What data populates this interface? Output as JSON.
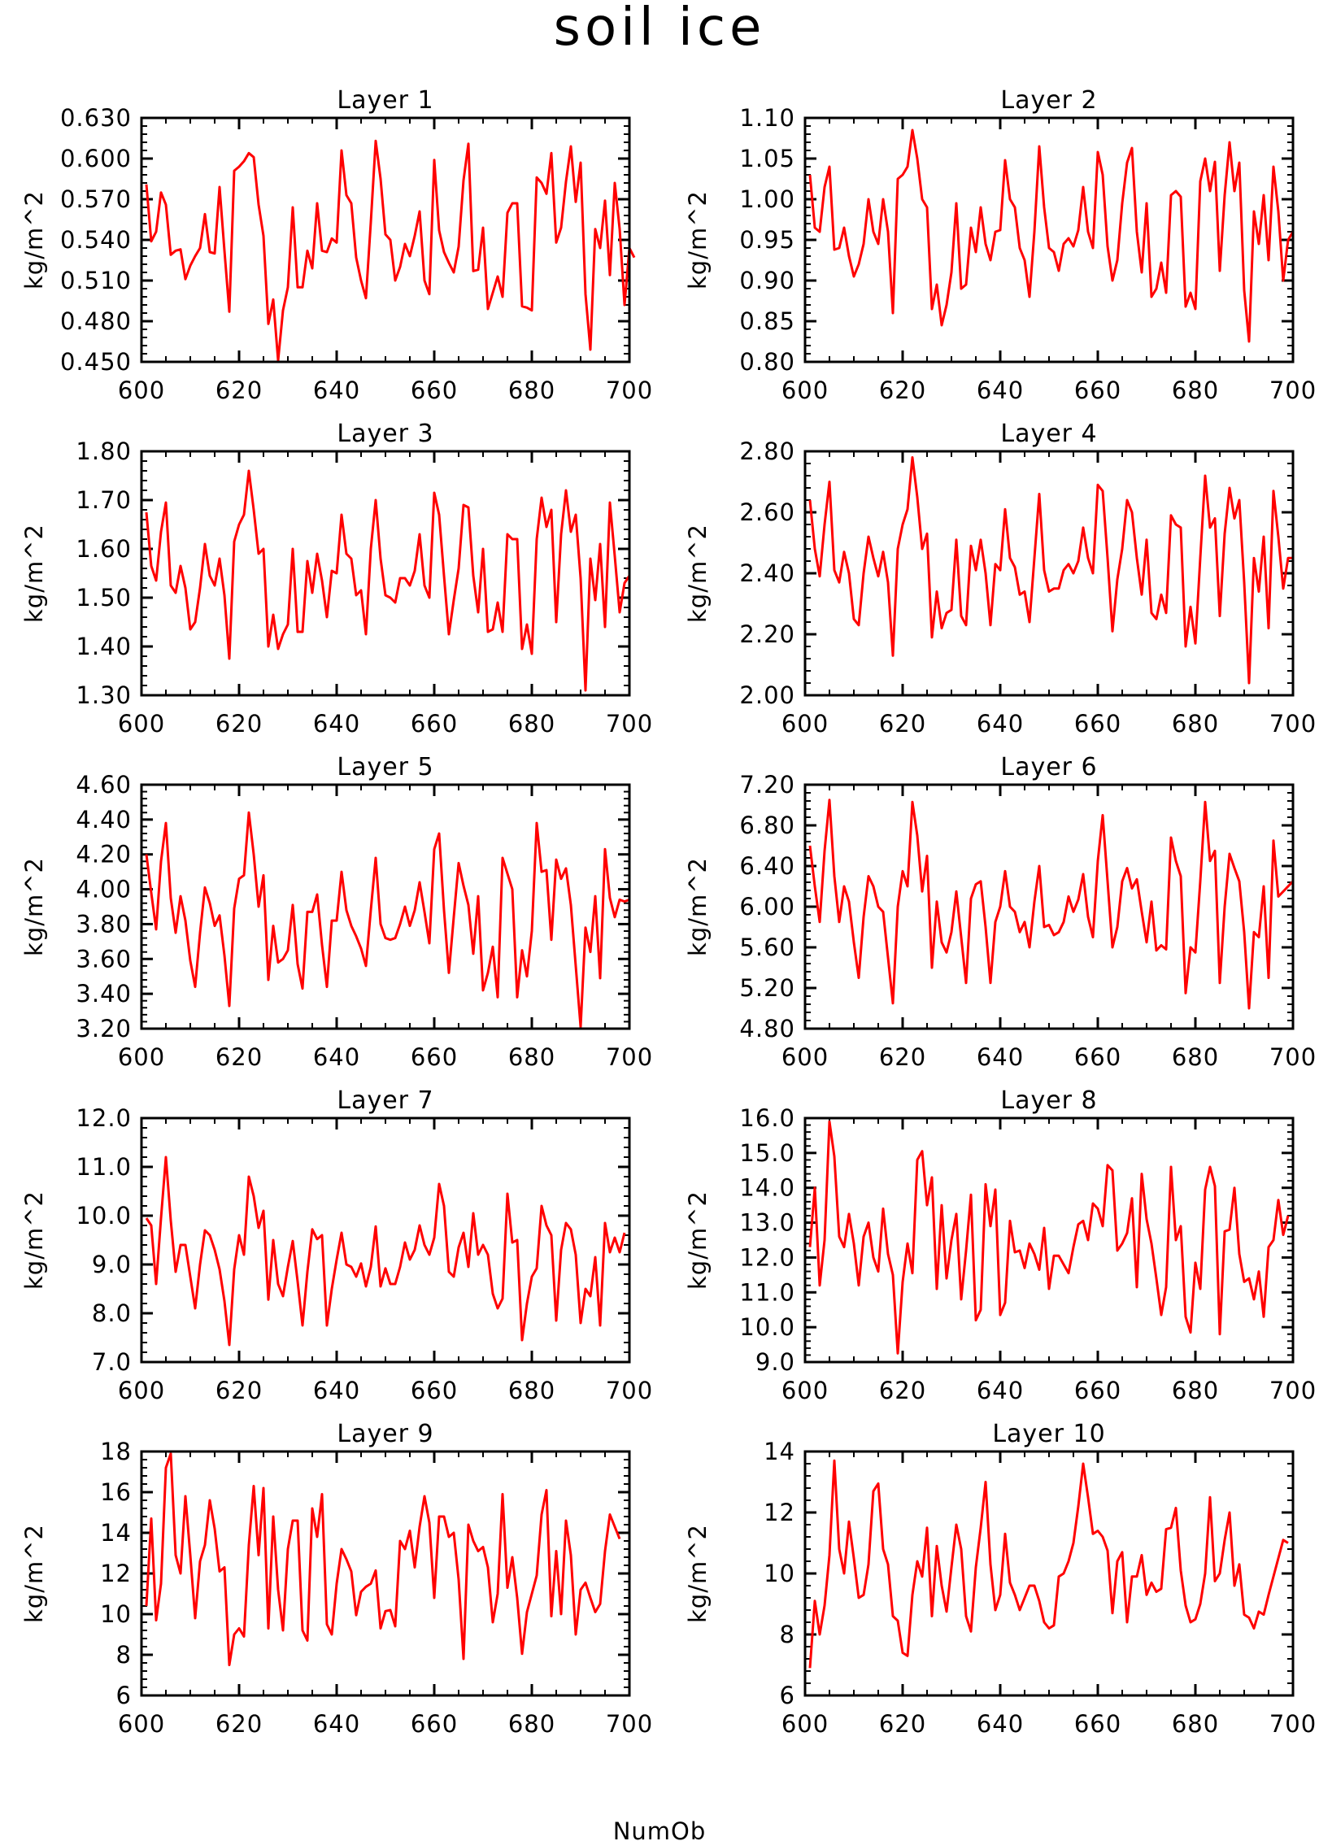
{
  "figure": {
    "title": "soil ice",
    "xlabel": "NumOb"
  },
  "colors": {
    "line": "#ff0000",
    "axes": "#000000",
    "background": "#ffffff"
  },
  "chart_data": [
    {
      "type": "line",
      "title": "Layer 1",
      "ylabel": "kg/m^2",
      "xlim": [
        600,
        700
      ],
      "ylim": [
        0.45,
        0.63
      ],
      "xticks": [
        "600",
        "620",
        "640",
        "660",
        "680",
        "700"
      ],
      "yticks": [
        "0.450",
        "0.480",
        "0.510",
        "0.540",
        "0.570",
        "0.600",
        "0.630"
      ],
      "x_start": 601,
      "values": [
        0.581,
        0.539,
        0.546,
        0.575,
        0.566,
        0.529,
        0.532,
        0.533,
        0.511,
        0.521,
        0.528,
        0.534,
        0.559,
        0.531,
        0.53,
        0.579,
        0.532,
        0.487,
        0.591,
        0.594,
        0.598,
        0.604,
        0.601,
        0.566,
        0.543,
        0.478,
        0.496,
        0.451,
        0.488,
        0.505,
        0.564,
        0.505,
        0.505,
        0.532,
        0.519,
        0.567,
        0.532,
        0.531,
        0.541,
        0.538,
        0.606,
        0.573,
        0.567,
        0.527,
        0.51,
        0.497,
        0.553,
        0.613,
        0.585,
        0.544,
        0.54,
        0.51,
        0.52,
        0.537,
        0.528,
        0.543,
        0.561,
        0.51,
        0.5,
        0.599,
        0.547,
        0.531,
        0.523,
        0.516,
        0.535,
        0.584,
        0.611,
        0.517,
        0.518,
        0.549,
        0.489,
        0.501,
        0.513,
        0.498,
        0.56,
        0.567,
        0.567,
        0.491,
        0.49,
        0.488,
        0.586,
        0.582,
        0.574,
        0.604,
        0.538,
        0.549,
        0.583,
        0.609,
        0.568,
        0.597,
        0.5,
        0.459,
        0.548,
        0.534,
        0.569,
        0.514,
        0.582,
        0.548,
        0.492,
        0.534,
        0.527
      ]
    },
    {
      "type": "line",
      "title": "Layer 2",
      "ylabel": "kg/m^2",
      "xlim": [
        600,
        700
      ],
      "ylim": [
        0.8,
        1.1
      ],
      "xticks": [
        "600",
        "620",
        "640",
        "660",
        "680",
        "700"
      ],
      "yticks": [
        "0.80",
        "0.85",
        "0.90",
        "0.95",
        "1.00",
        "1.05",
        "1.10"
      ],
      "x_start": 601,
      "values": [
        1.03,
        0.965,
        0.96,
        1.015,
        1.04,
        0.938,
        0.94,
        0.965,
        0.93,
        0.905,
        0.92,
        0.945,
        1.0,
        0.96,
        0.945,
        1.0,
        0.96,
        0.86,
        1.025,
        1.03,
        1.04,
        1.085,
        1.05,
        1.0,
        0.99,
        0.865,
        0.895,
        0.845,
        0.87,
        0.91,
        0.995,
        0.89,
        0.895,
        0.965,
        0.935,
        0.99,
        0.945,
        0.925,
        0.96,
        0.962,
        1.048,
        1.0,
        0.99,
        0.94,
        0.925,
        0.88,
        0.96,
        1.065,
        0.99,
        0.94,
        0.935,
        0.912,
        0.945,
        0.952,
        0.942,
        0.962,
        1.015,
        0.96,
        0.94,
        1.058,
        1.03,
        0.942,
        0.9,
        0.925,
        0.995,
        1.045,
        1.063,
        0.96,
        0.91,
        0.995,
        0.88,
        0.89,
        0.922,
        0.885,
        1.005,
        1.01,
        1.003,
        0.868,
        0.885,
        0.865,
        1.022,
        1.05,
        1.01,
        1.046,
        0.912,
        1.005,
        1.07,
        1.01,
        1.045,
        0.888,
        0.825,
        0.985,
        0.945,
        1.005,
        0.925,
        1.04,
        0.985,
        0.9,
        0.95,
        0.96
      ]
    },
    {
      "type": "line",
      "title": "Layer 3",
      "ylabel": "kg/m^2",
      "xlim": [
        600,
        700
      ],
      "ylim": [
        1.3,
        1.8
      ],
      "xticks": [
        "600",
        "620",
        "640",
        "660",
        "680",
        "700"
      ],
      "yticks": [
        "1.30",
        "1.40",
        "1.50",
        "1.60",
        "1.70",
        "1.80"
      ],
      "x_start": 601,
      "values": [
        1.675,
        1.565,
        1.535,
        1.635,
        1.695,
        1.525,
        1.51,
        1.565,
        1.52,
        1.435,
        1.45,
        1.52,
        1.61,
        1.545,
        1.525,
        1.58,
        1.505,
        1.375,
        1.615,
        1.65,
        1.67,
        1.76,
        1.68,
        1.59,
        1.6,
        1.4,
        1.465,
        1.395,
        1.425,
        1.445,
        1.6,
        1.43,
        1.43,
        1.575,
        1.51,
        1.59,
        1.535,
        1.46,
        1.555,
        1.55,
        1.67,
        1.59,
        1.58,
        1.505,
        1.515,
        1.425,
        1.6,
        1.7,
        1.58,
        1.505,
        1.5,
        1.49,
        1.54,
        1.54,
        1.525,
        1.555,
        1.63,
        1.525,
        1.5,
        1.715,
        1.67,
        1.545,
        1.425,
        1.495,
        1.56,
        1.69,
        1.685,
        1.545,
        1.47,
        1.6,
        1.43,
        1.435,
        1.49,
        1.43,
        1.63,
        1.62,
        1.62,
        1.395,
        1.445,
        1.385,
        1.62,
        1.705,
        1.645,
        1.68,
        1.45,
        1.63,
        1.72,
        1.635,
        1.67,
        1.54,
        1.31,
        1.58,
        1.495,
        1.61,
        1.44,
        1.695,
        1.585,
        1.47,
        1.53,
        1.545
      ]
    },
    {
      "type": "line",
      "title": "Layer 4",
      "ylabel": "kg/m^2",
      "xlim": [
        600,
        700
      ],
      "ylim": [
        2.0,
        2.8
      ],
      "xticks": [
        "600",
        "620",
        "640",
        "660",
        "680",
        "700"
      ],
      "yticks": [
        "2.00",
        "2.20",
        "2.40",
        "2.60",
        "2.80"
      ],
      "x_start": 601,
      "values": [
        2.64,
        2.48,
        2.39,
        2.56,
        2.7,
        2.41,
        2.37,
        2.47,
        2.4,
        2.25,
        2.23,
        2.4,
        2.52,
        2.45,
        2.39,
        2.47,
        2.37,
        2.13,
        2.48,
        2.56,
        2.61,
        2.78,
        2.65,
        2.48,
        2.53,
        2.19,
        2.34,
        2.22,
        2.27,
        2.28,
        2.51,
        2.26,
        2.23,
        2.49,
        2.41,
        2.51,
        2.4,
        2.23,
        2.43,
        2.41,
        2.61,
        2.45,
        2.42,
        2.33,
        2.34,
        2.24,
        2.45,
        2.66,
        2.41,
        2.34,
        2.35,
        2.35,
        2.41,
        2.43,
        2.4,
        2.44,
        2.55,
        2.45,
        2.4,
        2.69,
        2.67,
        2.45,
        2.21,
        2.38,
        2.48,
        2.64,
        2.6,
        2.45,
        2.33,
        2.51,
        2.27,
        2.25,
        2.33,
        2.27,
        2.59,
        2.56,
        2.55,
        2.16,
        2.29,
        2.17,
        2.45,
        2.72,
        2.55,
        2.58,
        2.26,
        2.53,
        2.68,
        2.58,
        2.64,
        2.37,
        2.04,
        2.45,
        2.34,
        2.52,
        2.22,
        2.67,
        2.52,
        2.35,
        2.45,
        2.45
      ]
    },
    {
      "type": "line",
      "title": "Layer 5",
      "ylabel": "kg/m^2",
      "xlim": [
        600,
        700
      ],
      "ylim": [
        3.2,
        4.6
      ],
      "xticks": [
        "600",
        "620",
        "640",
        "660",
        "680",
        "700"
      ],
      "yticks": [
        "3.20",
        "3.40",
        "3.60",
        "3.80",
        "4.00",
        "4.20",
        "4.40",
        "4.60"
      ],
      "x_start": 601,
      "values": [
        4.2,
        3.98,
        3.77,
        4.16,
        4.38,
        3.95,
        3.75,
        3.96,
        3.82,
        3.59,
        3.44,
        3.75,
        4.01,
        3.92,
        3.79,
        3.85,
        3.62,
        3.33,
        3.89,
        4.06,
        4.08,
        4.44,
        4.2,
        3.9,
        4.08,
        3.48,
        3.79,
        3.58,
        3.6,
        3.65,
        3.91,
        3.57,
        3.43,
        3.87,
        3.87,
        3.97,
        3.68,
        3.44,
        3.82,
        3.82,
        4.1,
        3.88,
        3.79,
        3.73,
        3.66,
        3.56,
        3.88,
        4.18,
        3.8,
        3.72,
        3.71,
        3.72,
        3.8,
        3.9,
        3.79,
        3.88,
        4.04,
        3.87,
        3.69,
        4.23,
        4.32,
        3.88,
        3.52,
        3.84,
        4.15,
        4.02,
        3.91,
        3.63,
        3.96,
        3.42,
        3.52,
        3.67,
        3.38,
        4.18,
        4.09,
        4.0,
        3.38,
        3.65,
        3.5,
        3.76,
        4.38,
        4.1,
        4.11,
        3.71,
        4.17,
        4.06,
        4.12,
        3.91,
        3.56,
        3.21,
        3.78,
        3.64,
        3.96,
        3.49,
        4.23,
        3.95,
        3.84,
        3.94,
        3.93,
        3.94
      ]
    },
    {
      "type": "line",
      "title": "Layer 6",
      "ylabel": "kg/m^2",
      "xlim": [
        600,
        700
      ],
      "ylim": [
        4.8,
        7.2
      ],
      "xticks": [
        "600",
        "620",
        "640",
        "660",
        "680",
        "700"
      ],
      "yticks": [
        "4.80",
        "5.20",
        "5.60",
        "6.00",
        "6.40",
        "6.80",
        "7.20"
      ],
      "x_start": 601,
      "values": [
        6.6,
        6.2,
        5.85,
        6.55,
        7.05,
        6.3,
        5.85,
        6.2,
        6.05,
        5.65,
        5.3,
        5.9,
        6.3,
        6.2,
        6.0,
        5.95,
        5.5,
        5.05,
        6.0,
        6.35,
        6.2,
        7.03,
        6.7,
        6.15,
        6.5,
        5.4,
        6.05,
        5.65,
        5.55,
        5.75,
        6.15,
        5.7,
        5.25,
        6.08,
        6.22,
        6.25,
        5.8,
        5.25,
        5.85,
        6.0,
        6.35,
        6.0,
        5.95,
        5.75,
        5.85,
        5.6,
        6.05,
        6.4,
        5.8,
        5.82,
        5.72,
        5.75,
        5.85,
        6.1,
        5.95,
        6.07,
        6.32,
        5.9,
        5.7,
        6.45,
        6.9,
        6.25,
        5.6,
        5.8,
        6.25,
        6.38,
        6.18,
        6.27,
        5.95,
        5.65,
        6.05,
        5.57,
        5.62,
        5.58,
        6.68,
        6.45,
        6.3,
        5.15,
        5.6,
        5.55,
        6.25,
        7.03,
        6.45,
        6.55,
        5.25,
        6.0,
        6.52,
        6.38,
        6.25,
        5.75,
        5.0,
        5.75,
        5.7,
        6.2,
        5.3,
        6.65,
        6.1,
        6.15,
        6.2,
        6.25
      ]
    },
    {
      "type": "line",
      "title": "Layer 7",
      "ylabel": "kg/m^2",
      "xlim": [
        600,
        700
      ],
      "ylim": [
        7.0,
        12.0
      ],
      "xticks": [
        "600",
        "620",
        "640",
        "660",
        "680",
        "700"
      ],
      "yticks": [
        "7.0",
        "8.0",
        "9.0",
        "10.0",
        "11.0",
        "12.0"
      ],
      "x_start": 601,
      "values": [
        9.95,
        9.8,
        8.6,
        9.95,
        11.2,
        9.9,
        8.85,
        9.4,
        9.4,
        8.75,
        8.1,
        9.0,
        9.7,
        9.6,
        9.3,
        8.9,
        8.25,
        7.35,
        8.9,
        9.6,
        9.2,
        10.8,
        10.4,
        9.75,
        10.1,
        8.28,
        9.5,
        8.6,
        8.35,
        8.95,
        9.48,
        8.65,
        7.75,
        8.85,
        9.72,
        9.52,
        9.6,
        7.75,
        8.5,
        9.1,
        9.65,
        9.0,
        8.95,
        8.75,
        9.02,
        8.55,
        8.95,
        9.78,
        8.55,
        8.92,
        8.6,
        8.6,
        8.95,
        9.45,
        9.1,
        9.3,
        9.8,
        9.4,
        9.2,
        9.55,
        10.65,
        10.2,
        8.85,
        8.75,
        9.35,
        9.65,
        8.95,
        10.05,
        9.2,
        9.4,
        9.2,
        8.4,
        8.1,
        8.3,
        10.45,
        9.45,
        9.5,
        7.45,
        8.2,
        8.75,
        8.92,
        10.2,
        9.8,
        9.6,
        7.85,
        9.3,
        9.85,
        9.72,
        9.2,
        7.8,
        8.5,
        8.35,
        9.15,
        7.75,
        9.85,
        9.25,
        9.55,
        9.25,
        9.65
      ]
    },
    {
      "type": "line",
      "title": "Layer 8",
      "ylabel": "kg/m^2",
      "xlim": [
        600,
        700
      ],
      "ylim": [
        9.0,
        16.0
      ],
      "xticks": [
        "600",
        "620",
        "640",
        "660",
        "680",
        "700"
      ],
      "yticks": [
        "9.0",
        "10.0",
        "11.0",
        "12.0",
        "13.0",
        "14.0",
        "15.0",
        "16.0"
      ],
      "x_start": 601,
      "values": [
        12.3,
        14.0,
        11.2,
        12.5,
        15.9,
        14.9,
        12.6,
        12.3,
        13.25,
        12.4,
        11.2,
        12.6,
        13.0,
        12.0,
        11.6,
        13.4,
        12.1,
        11.5,
        9.25,
        11.3,
        12.4,
        11.55,
        14.8,
        15.05,
        13.5,
        14.3,
        11.1,
        13.5,
        11.4,
        12.5,
        13.25,
        10.8,
        12.2,
        13.8,
        10.2,
        10.5,
        14.1,
        12.9,
        13.95,
        10.35,
        10.7,
        13.05,
        12.15,
        12.2,
        11.7,
        12.4,
        12.1,
        11.65,
        12.85,
        11.1,
        12.05,
        12.05,
        11.8,
        11.55,
        12.3,
        12.95,
        13.05,
        12.5,
        13.55,
        13.4,
        12.9,
        14.65,
        14.5,
        12.2,
        12.4,
        12.7,
        13.7,
        11.15,
        14.4,
        13.1,
        12.4,
        11.4,
        10.35,
        11.15,
        14.6,
        12.5,
        12.9,
        10.3,
        9.85,
        11.85,
        11.1,
        13.95,
        14.6,
        14.05,
        9.8,
        12.75,
        12.8,
        14.0,
        12.1,
        11.3,
        11.4,
        10.8,
        11.6,
        10.3,
        12.3,
        12.5,
        13.65,
        12.65,
        13.2
      ]
    },
    {
      "type": "line",
      "title": "Layer 9",
      "ylabel": "kg/m^2",
      "xlim": [
        600,
        700
      ],
      "ylim": [
        6,
        18
      ],
      "xticks": [
        "600",
        "620",
        "640",
        "660",
        "680",
        "700"
      ],
      "yticks": [
        "6",
        "8",
        "10",
        "12",
        "14",
        "16",
        "18"
      ],
      "x_start": 601,
      "values": [
        10.4,
        14.7,
        9.7,
        11.5,
        17.2,
        17.9,
        12.9,
        12.0,
        15.8,
        12.9,
        9.8,
        12.6,
        13.4,
        15.6,
        14.2,
        12.1,
        12.3,
        7.5,
        9.0,
        9.3,
        8.9,
        13.4,
        16.3,
        12.9,
        16.2,
        9.3,
        14.8,
        11.2,
        9.2,
        13.2,
        14.6,
        14.6,
        9.2,
        8.7,
        15.2,
        13.8,
        15.9,
        9.5,
        9.0,
        11.5,
        13.2,
        12.7,
        12.1,
        9.95,
        11.1,
        11.35,
        11.5,
        12.15,
        9.3,
        10.15,
        10.2,
        9.4,
        13.6,
        13.2,
        14.1,
        12.3,
        14.3,
        15.8,
        14.5,
        10.8,
        14.8,
        14.8,
        13.8,
        14.0,
        11.7,
        7.8,
        14.4,
        13.6,
        13.1,
        13.3,
        12.3,
        9.6,
        11.0,
        15.9,
        11.3,
        12.8,
        10.8,
        8.05,
        10.1,
        11.0,
        11.9,
        14.9,
        16.1,
        9.9,
        13.1,
        10.0,
        14.6,
        12.9,
        9.0,
        11.2,
        11.55,
        10.8,
        10.1,
        10.5,
        13.1,
        14.9,
        14.3,
        13.7
      ]
    },
    {
      "type": "line",
      "title": "Layer 10",
      "ylabel": "kg/m^2",
      "xlim": [
        600,
        700
      ],
      "ylim": [
        6,
        14
      ],
      "xticks": [
        "600",
        "620",
        "640",
        "660",
        "680",
        "700"
      ],
      "yticks": [
        "6",
        "8",
        "10",
        "12",
        "14"
      ],
      "x_start": 601,
      "values": [
        6.9,
        9.1,
        8.0,
        8.95,
        10.6,
        13.7,
        10.8,
        10.0,
        11.7,
        10.5,
        9.2,
        9.3,
        10.3,
        12.7,
        12.95,
        10.8,
        10.3,
        8.6,
        8.45,
        7.4,
        7.3,
        9.3,
        10.4,
        9.9,
        11.5,
        8.6,
        10.9,
        9.6,
        8.75,
        10.2,
        11.6,
        10.8,
        8.6,
        8.1,
        10.2,
        11.5,
        13.0,
        10.3,
        8.8,
        9.3,
        11.3,
        9.7,
        9.3,
        8.8,
        9.2,
        9.6,
        9.6,
        9.1,
        8.4,
        8.2,
        8.3,
        9.9,
        10.0,
        10.4,
        11.0,
        12.2,
        13.6,
        12.5,
        11.3,
        11.4,
        11.2,
        10.75,
        8.7,
        10.4,
        10.7,
        8.4,
        9.9,
        9.9,
        10.6,
        9.3,
        9.7,
        9.4,
        9.5,
        11.45,
        11.5,
        12.15,
        10.1,
        8.95,
        8.4,
        8.5,
        9.0,
        10.0,
        12.5,
        9.75,
        10.0,
        11.1,
        12.0,
        9.6,
        10.3,
        8.65,
        8.55,
        8.2,
        8.75,
        8.65,
        9.3,
        9.9,
        10.5,
        11.1,
        11.0
      ]
    }
  ]
}
